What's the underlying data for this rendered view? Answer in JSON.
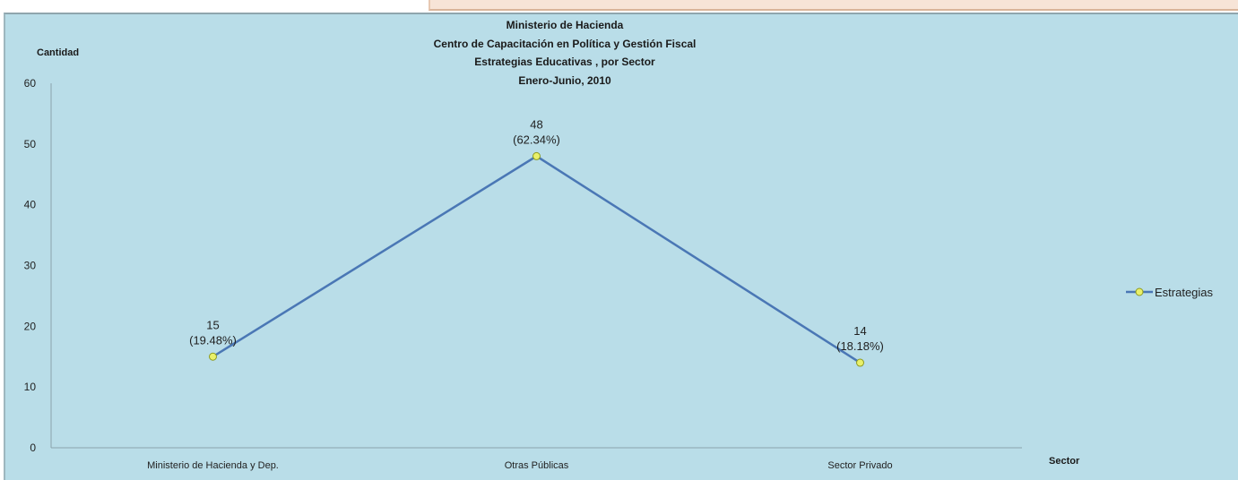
{
  "chart_data": {
    "type": "line",
    "title_lines": [
      "Ministerio de Hacienda",
      "Centro de Capacitación en Política y Gestión Fiscal",
      "Estrategias Educativas , por Sector",
      "Enero-Junio, 2010"
    ],
    "ylabel": "Cantidad",
    "xlabel": "Sector",
    "ylim": [
      0,
      60
    ],
    "yticks": [
      0,
      10,
      20,
      30,
      40,
      50,
      60
    ],
    "categories": [
      "Ministerio de Hacienda y Dep.",
      "Otras Públicas",
      "Sector Privado"
    ],
    "series": [
      {
        "name": "Estrategias",
        "values": [
          15,
          48,
          14
        ],
        "labels": [
          [
            "15",
            "(19.48%)"
          ],
          [
            "48",
            "(62.34%)"
          ],
          [
            "14",
            "(18.18%)"
          ]
        ]
      }
    ],
    "legend_position": "right",
    "grid": false,
    "colors": {
      "background": "#b9dde8",
      "line": "#4a77b5",
      "marker_fill": "#e9f06a",
      "marker_stroke": "#8e9a1f"
    }
  }
}
